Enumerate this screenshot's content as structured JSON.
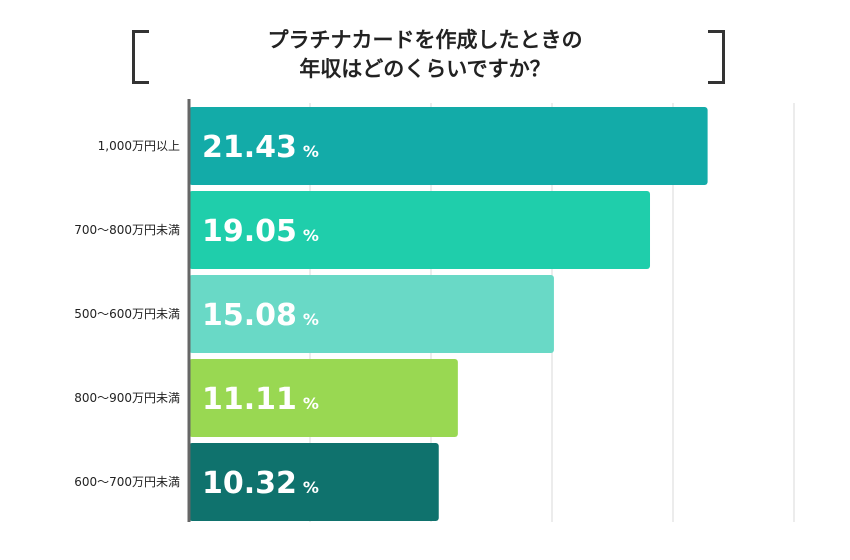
{
  "chart_data": {
    "type": "bar",
    "orientation": "horizontal",
    "title": [
      "プラチナカードを作成したときの",
      "年収はどのくらいですか？"
    ],
    "categories": [
      "1,000万円以上",
      "700〜800万円未満",
      "500〜600万円未満",
      "800〜900万円未満",
      "600〜700万円未満"
    ],
    "values": [
      21.43,
      19.05,
      15.08,
      11.11,
      10.32
    ],
    "value_labels": [
      "21.43",
      "19.05",
      "15.08",
      "11.11",
      "10.32"
    ],
    "unit": "%",
    "colors": [
      "#13aba8",
      "#1fceab",
      "#69d9c6",
      "#99d852",
      "#0f726d"
    ],
    "xlim": [
      0,
      25
    ],
    "grid": true,
    "xlabel": "",
    "ylabel": ""
  }
}
